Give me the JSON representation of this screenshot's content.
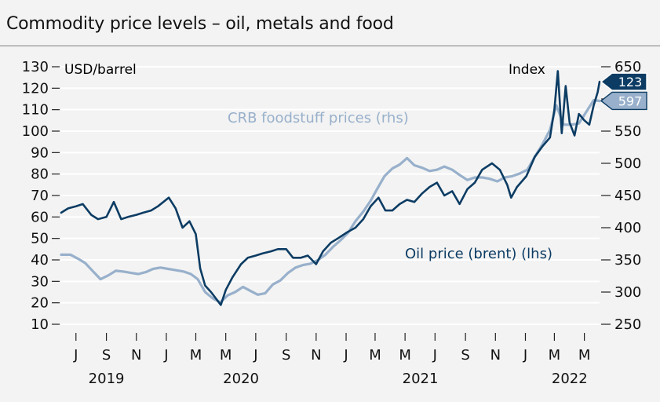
{
  "title": "Commodity price levels – oil, metals and food",
  "chart_data": {
    "type": "line",
    "left_axis_unit": "USD/barrel",
    "right_axis_unit": "Index",
    "left_ticks": [
      130,
      120,
      110,
      100,
      90,
      80,
      70,
      60,
      50,
      40,
      30,
      20,
      10
    ],
    "right_ticks": [
      650,
      600,
      550,
      500,
      450,
      400,
      350,
      300,
      250
    ],
    "ylim_left": [
      10,
      130
    ],
    "ylim_right": [
      250,
      650
    ],
    "x_month_labels": [
      {
        "label": "J",
        "date": "2019-07-01"
      },
      {
        "label": "S",
        "date": "2019-09-01"
      },
      {
        "label": "N",
        "date": "2019-11-01"
      },
      {
        "label": "J",
        "date": "2020-01-01"
      },
      {
        "label": "M",
        "date": "2020-03-01"
      },
      {
        "label": "M",
        "date": "2020-05-01"
      },
      {
        "label": "J",
        "date": "2020-07-01"
      },
      {
        "label": "S",
        "date": "2020-09-01"
      },
      {
        "label": "N",
        "date": "2020-11-01"
      },
      {
        "label": "J",
        "date": "2021-01-01"
      },
      {
        "label": "M",
        "date": "2021-03-01"
      },
      {
        "label": "M",
        "date": "2021-05-01"
      },
      {
        "label": "J",
        "date": "2021-07-01"
      },
      {
        "label": "S",
        "date": "2021-09-01"
      },
      {
        "label": "N",
        "date": "2021-11-01"
      },
      {
        "label": "J",
        "date": "2022-01-01"
      },
      {
        "label": "M",
        "date": "2022-03-01"
      },
      {
        "label": "M",
        "date": "2022-05-01"
      }
    ],
    "x_year_labels": [
      {
        "label": "2019",
        "date": "2019-09-01"
      },
      {
        "label": "2020",
        "date": "2020-06-01"
      },
      {
        "label": "2021",
        "date": "2021-06-01"
      },
      {
        "label": "2022",
        "date": "2022-04-01"
      }
    ],
    "x_range": [
      "2019-06-01",
      "2022-06-01"
    ],
    "series": [
      {
        "name": "Oil price (brent) (lhs)",
        "axis": "left",
        "color": "#0c3c63",
        "end_label": "123",
        "points": [
          [
            "2019-06-01",
            62
          ],
          [
            "2019-06-15",
            64
          ],
          [
            "2019-07-01",
            65
          ],
          [
            "2019-07-15",
            66
          ],
          [
            "2019-08-01",
            61
          ],
          [
            "2019-08-15",
            59
          ],
          [
            "2019-09-01",
            60
          ],
          [
            "2019-09-16",
            67
          ],
          [
            "2019-10-01",
            59
          ],
          [
            "2019-10-15",
            60
          ],
          [
            "2019-11-01",
            61
          ],
          [
            "2019-11-15",
            62
          ],
          [
            "2019-12-01",
            63
          ],
          [
            "2019-12-15",
            65
          ],
          [
            "2020-01-06",
            69
          ],
          [
            "2020-01-20",
            64
          ],
          [
            "2020-02-03",
            55
          ],
          [
            "2020-02-17",
            58
          ],
          [
            "2020-03-01",
            52
          ],
          [
            "2020-03-10",
            36
          ],
          [
            "2020-03-20",
            28
          ],
          [
            "2020-04-01",
            25
          ],
          [
            "2020-04-21",
            19
          ],
          [
            "2020-05-01",
            26
          ],
          [
            "2020-05-15",
            32
          ],
          [
            "2020-06-01",
            38
          ],
          [
            "2020-06-15",
            41
          ],
          [
            "2020-07-01",
            42
          ],
          [
            "2020-07-15",
            43
          ],
          [
            "2020-08-01",
            44
          ],
          [
            "2020-08-15",
            45
          ],
          [
            "2020-09-01",
            45
          ],
          [
            "2020-09-15",
            41
          ],
          [
            "2020-10-01",
            41
          ],
          [
            "2020-10-15",
            42
          ],
          [
            "2020-11-01",
            38
          ],
          [
            "2020-11-15",
            44
          ],
          [
            "2020-12-01",
            48
          ],
          [
            "2020-12-15",
            50
          ],
          [
            "2021-01-04",
            53
          ],
          [
            "2021-01-20",
            55
          ],
          [
            "2021-02-05",
            59
          ],
          [
            "2021-02-20",
            65
          ],
          [
            "2021-03-08",
            69
          ],
          [
            "2021-03-22",
            63
          ],
          [
            "2021-04-05",
            63
          ],
          [
            "2021-04-20",
            66
          ],
          [
            "2021-05-05",
            68
          ],
          [
            "2021-05-20",
            67
          ],
          [
            "2021-06-05",
            71
          ],
          [
            "2021-06-20",
            74
          ],
          [
            "2021-07-05",
            76
          ],
          [
            "2021-07-20",
            70
          ],
          [
            "2021-08-05",
            72
          ],
          [
            "2021-08-20",
            66
          ],
          [
            "2021-09-05",
            73
          ],
          [
            "2021-09-20",
            76
          ],
          [
            "2021-10-05",
            82
          ],
          [
            "2021-10-25",
            85
          ],
          [
            "2021-11-10",
            82
          ],
          [
            "2021-11-25",
            75
          ],
          [
            "2021-12-03",
            69
          ],
          [
            "2021-12-15",
            74
          ],
          [
            "2022-01-03",
            79
          ],
          [
            "2022-01-20",
            88
          ],
          [
            "2022-02-05",
            93
          ],
          [
            "2022-02-20",
            97
          ],
          [
            "2022-03-01",
            110
          ],
          [
            "2022-03-08",
            128
          ],
          [
            "2022-03-16",
            99
          ],
          [
            "2022-03-24",
            121
          ],
          [
            "2022-04-01",
            104
          ],
          [
            "2022-04-11",
            98
          ],
          [
            "2022-04-20",
            108
          ],
          [
            "2022-05-01",
            105
          ],
          [
            "2022-05-11",
            103
          ],
          [
            "2022-05-20",
            112
          ],
          [
            "2022-05-28",
            118
          ],
          [
            "2022-06-01",
            123
          ]
        ]
      },
      {
        "name": "CRB foodstuff prices (rhs)",
        "axis": "right",
        "color": "#98b0cb",
        "end_label": "597",
        "points": [
          [
            "2019-06-01",
            358
          ],
          [
            "2019-06-20",
            358
          ],
          [
            "2019-07-05",
            352
          ],
          [
            "2019-07-20",
            345
          ],
          [
            "2019-08-05",
            332
          ],
          [
            "2019-08-20",
            320
          ],
          [
            "2019-09-05",
            326
          ],
          [
            "2019-09-20",
            333
          ],
          [
            "2019-10-05",
            332
          ],
          [
            "2019-10-20",
            330
          ],
          [
            "2019-11-05",
            328
          ],
          [
            "2019-11-20",
            331
          ],
          [
            "2019-12-05",
            336
          ],
          [
            "2019-12-20",
            338
          ],
          [
            "2020-01-05",
            336
          ],
          [
            "2020-01-20",
            334
          ],
          [
            "2020-02-05",
            332
          ],
          [
            "2020-02-20",
            328
          ],
          [
            "2020-03-05",
            320
          ],
          [
            "2020-03-20",
            300
          ],
          [
            "2020-04-05",
            290
          ],
          [
            "2020-04-20",
            284
          ],
          [
            "2020-05-05",
            295
          ],
          [
            "2020-05-20",
            300
          ],
          [
            "2020-06-05",
            308
          ],
          [
            "2020-06-20",
            302
          ],
          [
            "2020-07-05",
            296
          ],
          [
            "2020-07-20",
            298
          ],
          [
            "2020-08-05",
            312
          ],
          [
            "2020-08-20",
            318
          ],
          [
            "2020-09-05",
            330
          ],
          [
            "2020-09-20",
            338
          ],
          [
            "2020-10-05",
            342
          ],
          [
            "2020-10-20",
            344
          ],
          [
            "2020-11-05",
            350
          ],
          [
            "2020-11-20",
            358
          ],
          [
            "2020-12-05",
            370
          ],
          [
            "2020-12-20",
            380
          ],
          [
            "2021-01-05",
            392
          ],
          [
            "2021-01-20",
            410
          ],
          [
            "2021-02-05",
            425
          ],
          [
            "2021-02-20",
            442
          ],
          [
            "2021-03-05",
            460
          ],
          [
            "2021-03-20",
            480
          ],
          [
            "2021-04-05",
            492
          ],
          [
            "2021-04-20",
            498
          ],
          [
            "2021-05-05",
            508
          ],
          [
            "2021-05-20",
            497
          ],
          [
            "2021-06-05",
            493
          ],
          [
            "2021-06-20",
            488
          ],
          [
            "2021-07-05",
            490
          ],
          [
            "2021-07-20",
            495
          ],
          [
            "2021-08-05",
            490
          ],
          [
            "2021-08-20",
            482
          ],
          [
            "2021-09-05",
            474
          ],
          [
            "2021-09-20",
            478
          ],
          [
            "2021-10-05",
            478
          ],
          [
            "2021-10-20",
            476
          ],
          [
            "2021-11-05",
            472
          ],
          [
            "2021-11-20",
            478
          ],
          [
            "2021-12-05",
            480
          ],
          [
            "2021-12-20",
            484
          ],
          [
            "2022-01-05",
            490
          ],
          [
            "2022-01-20",
            510
          ],
          [
            "2022-02-05",
            530
          ],
          [
            "2022-02-20",
            552
          ],
          [
            "2022-03-05",
            590
          ],
          [
            "2022-03-20",
            560
          ],
          [
            "2022-04-05",
            560
          ],
          [
            "2022-04-20",
            562
          ],
          [
            "2022-05-05",
            580
          ],
          [
            "2022-05-20",
            598
          ],
          [
            "2022-06-01",
            597
          ]
        ]
      }
    ],
    "annotations": [
      {
        "text": "CRB foodstuff prices (rhs)",
        "color": "#98b0cb"
      },
      {
        "text": "Oil price (brent) (lhs)",
        "color": "#0c3c63"
      }
    ],
    "grid": "horizontal",
    "legend": "inline"
  }
}
